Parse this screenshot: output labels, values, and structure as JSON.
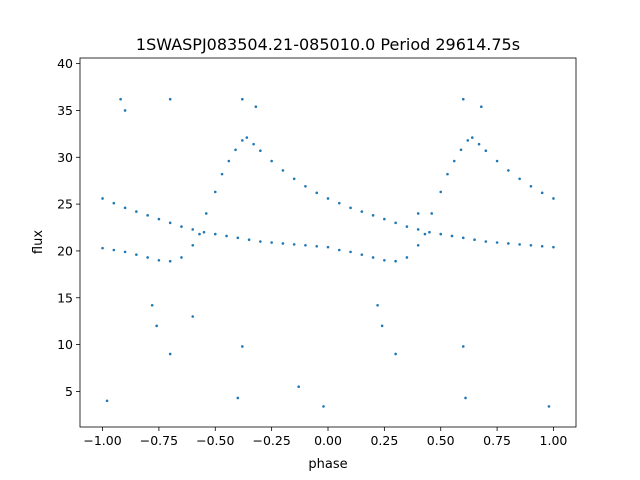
{
  "chart_data": {
    "type": "scatter",
    "title": "1SWASPJ083504.21-085010.0 Period 29614.75s",
    "xlabel": "phase",
    "ylabel": "flux",
    "xlim": [
      -1.1,
      1.1
    ],
    "ylim": [
      1.2,
      40.6
    ],
    "xticks": [
      -1.0,
      -0.75,
      -0.5,
      -0.25,
      0.0,
      0.25,
      0.5,
      0.75,
      1.0
    ],
    "xtick_labels": [
      "−1.00",
      "−0.75",
      "−0.50",
      "−0.25",
      "0.00",
      "0.25",
      "0.50",
      "0.75",
      "1.00"
    ],
    "yticks": [
      5,
      10,
      15,
      20,
      25,
      30,
      35,
      40
    ],
    "ytick_labels": [
      "5",
      "10",
      "15",
      "20",
      "25",
      "30",
      "35",
      "40"
    ],
    "grid": false,
    "legend": "none",
    "marker_color": "#1f77b4",
    "series": [
      {
        "points": [
          [
            -1.0,
            25.6
          ],
          [
            -0.95,
            25.1
          ],
          [
            -0.9,
            24.6
          ],
          [
            -0.85,
            24.2
          ],
          [
            -0.8,
            23.8
          ],
          [
            -0.75,
            23.4
          ],
          [
            -0.7,
            23.0
          ],
          [
            -0.65,
            22.6
          ],
          [
            -0.6,
            22.3
          ],
          [
            -0.55,
            22.0
          ],
          [
            -0.5,
            21.8
          ],
          [
            -0.45,
            21.6
          ],
          [
            -0.4,
            21.4
          ],
          [
            -0.35,
            21.2
          ],
          [
            -0.3,
            21.0
          ],
          [
            -0.25,
            20.9
          ],
          [
            -0.2,
            20.8
          ],
          [
            -0.15,
            20.7
          ],
          [
            -0.1,
            20.6
          ],
          [
            -0.05,
            20.5
          ],
          [
            0.0,
            20.4
          ],
          [
            -1.0,
            20.3
          ],
          [
            -0.95,
            20.1
          ],
          [
            -0.9,
            19.9
          ],
          [
            -0.85,
            19.6
          ],
          [
            -0.8,
            19.3
          ],
          [
            -0.75,
            19.0
          ],
          [
            -0.7,
            18.9
          ],
          [
            -0.65,
            19.3
          ],
          [
            -0.6,
            20.6
          ],
          [
            -0.57,
            21.8
          ],
          [
            -0.54,
            24.0
          ],
          [
            -0.5,
            26.3
          ],
          [
            -0.47,
            28.2
          ],
          [
            -0.44,
            29.6
          ],
          [
            -0.41,
            30.8
          ],
          [
            -0.38,
            31.8
          ],
          [
            -0.36,
            32.1
          ],
          [
            -0.33,
            31.4
          ],
          [
            -0.3,
            30.7
          ],
          [
            -0.25,
            29.6
          ],
          [
            -0.2,
            28.6
          ],
          [
            -0.15,
            27.7
          ],
          [
            -0.1,
            26.9
          ],
          [
            -0.05,
            26.2
          ],
          [
            0.0,
            25.6
          ],
          [
            0.05,
            25.1
          ],
          [
            0.1,
            24.6
          ],
          [
            0.15,
            24.2
          ],
          [
            0.2,
            23.8
          ],
          [
            0.25,
            23.4
          ],
          [
            0.3,
            23.0
          ],
          [
            0.35,
            22.6
          ],
          [
            0.4,
            22.3
          ],
          [
            0.45,
            22.0
          ],
          [
            0.5,
            21.8
          ],
          [
            0.55,
            21.6
          ],
          [
            0.6,
            21.4
          ],
          [
            0.65,
            21.2
          ],
          [
            0.7,
            21.0
          ],
          [
            0.75,
            20.9
          ],
          [
            0.8,
            20.8
          ],
          [
            0.85,
            20.7
          ],
          [
            0.9,
            20.6
          ],
          [
            0.95,
            20.5
          ],
          [
            1.0,
            20.4
          ],
          [
            0.05,
            20.1
          ],
          [
            0.1,
            19.9
          ],
          [
            0.15,
            19.6
          ],
          [
            0.2,
            19.3
          ],
          [
            0.25,
            19.0
          ],
          [
            0.3,
            18.9
          ],
          [
            0.35,
            19.3
          ],
          [
            0.4,
            20.6
          ],
          [
            0.43,
            21.8
          ],
          [
            0.46,
            24.0
          ],
          [
            0.5,
            26.3
          ],
          [
            0.53,
            28.2
          ],
          [
            0.56,
            29.6
          ],
          [
            0.59,
            30.8
          ],
          [
            0.62,
            31.8
          ],
          [
            0.64,
            32.1
          ],
          [
            0.67,
            31.4
          ],
          [
            0.7,
            30.7
          ],
          [
            0.75,
            29.6
          ],
          [
            0.8,
            28.6
          ],
          [
            0.85,
            27.7
          ],
          [
            0.9,
            26.9
          ],
          [
            0.95,
            26.2
          ],
          [
            1.0,
            25.6
          ],
          [
            -0.92,
            36.2
          ],
          [
            -0.9,
            35.0
          ],
          [
            -0.7,
            36.2
          ],
          [
            -0.38,
            36.2
          ],
          [
            -0.32,
            35.4
          ],
          [
            -0.38,
            9.8
          ],
          [
            -0.4,
            4.3
          ],
          [
            -0.78,
            14.2
          ],
          [
            -0.76,
            12.0
          ],
          [
            -0.7,
            9.0
          ],
          [
            0.22,
            14.2
          ],
          [
            0.24,
            12.0
          ],
          [
            0.3,
            9.0
          ],
          [
            0.6,
            36.2
          ],
          [
            0.68,
            35.4
          ],
          [
            0.6,
            9.8
          ],
          [
            0.61,
            4.3
          ],
          [
            -0.13,
            5.5
          ],
          [
            -0.02,
            3.4
          ],
          [
            0.98,
            3.4
          ],
          [
            -0.98,
            4.0
          ],
          [
            0.4,
            24.0
          ],
          [
            -0.6,
            13.0
          ]
        ]
      }
    ]
  }
}
